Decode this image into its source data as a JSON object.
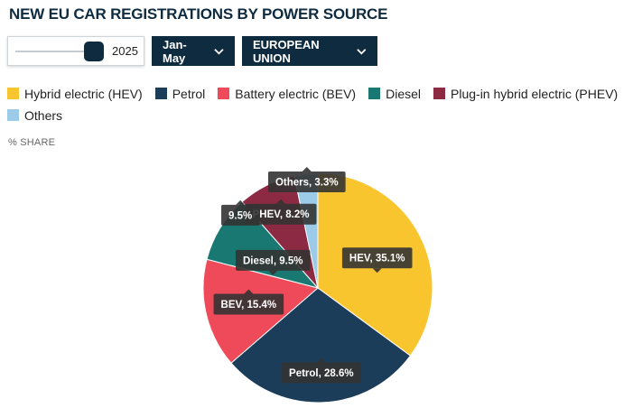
{
  "title": "NEW EU CAR REGISTRATIONS BY POWER SOURCE",
  "controls": {
    "year": "2025",
    "period": "Jan-May",
    "region": "EUROPEAN UNION"
  },
  "legend": [
    {
      "label": "Hybrid electric (HEV)",
      "color": "#f9c52e"
    },
    {
      "label": "Petrol",
      "color": "#1c3d5a"
    },
    {
      "label": "Battery electric (BEV)",
      "color": "#ef4a5a"
    },
    {
      "label": "Diesel",
      "color": "#1a7873"
    },
    {
      "label": "Plug-in hybrid electric (PHEV)",
      "color": "#8c2a43"
    },
    {
      "label": "Others",
      "color": "#9ccbea"
    }
  ],
  "share_label": "% SHARE",
  "chart_data": {
    "type": "pie",
    "unit": "%",
    "slices": [
      {
        "name": "Hybrid electric (HEV)",
        "value": 35.1,
        "label": "HEV, 35.1%",
        "color": "#f9c52e"
      },
      {
        "name": "Petrol",
        "value": 28.6,
        "label": "Petrol, 28.6%",
        "color": "#1c3d5a"
      },
      {
        "name": "Battery electric (BEV)",
        "value": 15.4,
        "label": "BEV, 15.4%",
        "color": "#ef4a5a"
      },
      {
        "name": "Diesel",
        "value": 9.5,
        "label": "Diesel, 9.5%",
        "color": "#1a7873"
      },
      {
        "name": "Plug-in hybrid electric (PHEV)",
        "value": 8.2,
        "label": "PHEV, 8.2%",
        "color": "#8c2a43"
      },
      {
        "name": "Others",
        "value": 3.3,
        "label": "Others, 3.3%",
        "color": "#9ccbea"
      }
    ],
    "overlay_label": "9.5%"
  }
}
